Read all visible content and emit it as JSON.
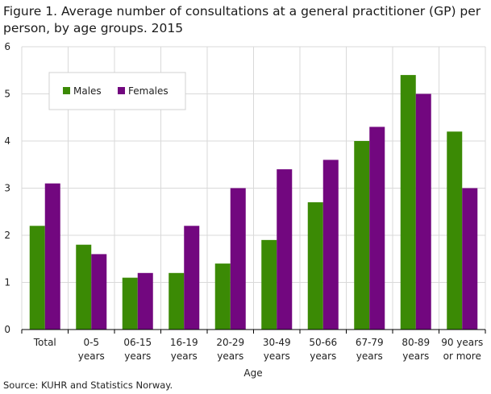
{
  "title": "Figure 1. Average number of consultations at a general practitioner (GP) per person, by age groups. 2015",
  "source": "Source: KUHR and Statistics Norway.",
  "chart_data": {
    "type": "bar",
    "title": "Figure 1. Average number of consultations at a general practitioner (GP) per person, by age groups. 2015",
    "xlabel": "Age",
    "ylabel": "",
    "ylim": [
      0,
      6
    ],
    "yticks": [
      0,
      1,
      2,
      3,
      4,
      5,
      6
    ],
    "grid": true,
    "legend_position": "top-left",
    "categories": [
      [
        "Total"
      ],
      [
        "0-5",
        "years"
      ],
      [
        "06-15",
        "years"
      ],
      [
        "16-19",
        "years"
      ],
      [
        "20-29",
        "years"
      ],
      [
        "30-49",
        "years"
      ],
      [
        "50-66",
        "years"
      ],
      [
        "67-79",
        "years"
      ],
      [
        "80-89",
        "years"
      ],
      [
        "90 years",
        "or more"
      ]
    ],
    "series": [
      {
        "name": "Males",
        "color": "#3b8a05",
        "values": [
          2.2,
          1.8,
          1.1,
          1.2,
          1.4,
          1.9,
          2.7,
          4.0,
          5.4,
          4.2
        ]
      },
      {
        "name": "Females",
        "color": "#72077f",
        "values": [
          3.1,
          1.6,
          1.2,
          2.2,
          3.0,
          3.4,
          3.6,
          4.3,
          5.0,
          3.0
        ]
      }
    ]
  }
}
